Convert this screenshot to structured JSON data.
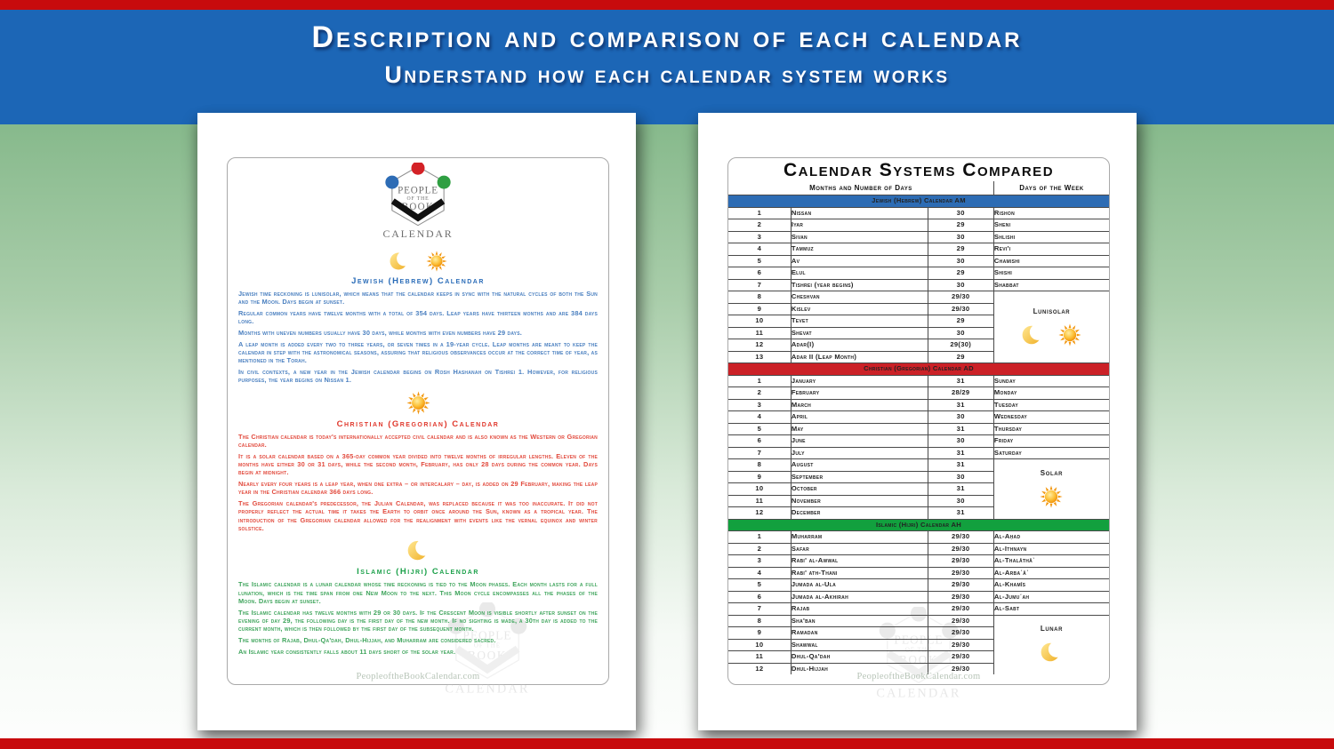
{
  "header": {
    "title": "Description and comparison of each calendar",
    "subtitle": "Understand how each calendar system works"
  },
  "colors": {
    "top_bar_red": "#c70b0d",
    "header_blue": "#1c66b6",
    "jewish_blue": "#2d6cb4",
    "christian_red": "#cb2127",
    "islamic_green": "#12a03e"
  },
  "logo": {
    "line1": "PEOPLE",
    "line2": "OF THE",
    "line3": "BOOK",
    "line4": "CALENDAR"
  },
  "watermark": {
    "url": "PeopleoftheBookCalendar.com"
  },
  "doc": {
    "sections": [
      {
        "id": "jewish",
        "heading": "Jewish (Hebrew) Calendar",
        "heading_color": "#2a6cb8",
        "text_color": "#4b80c0",
        "icons": [
          "moon",
          "sun"
        ],
        "paragraphs": [
          "Jewish time reckoning is lunisolar, which means that the calendar keeps in sync with the natural cycles of both the Sun and the Moon. Days begin at sunset.",
          "Regular common years have twelve months with a total of 354 days. Leap years have thirteen months and are 384 days long.",
          "Months with uneven numbers usually have 30 days, while months with even numbers have 29 days.",
          "A leap month is added every two to three years, or seven times in a 19-year cycle. Leap months are meant to keep the calendar in step with the astronomical seasons, assuring that religious observances occur at the correct time of year, as mentioned in the Torah.",
          "In civil contexts, a new year in the Jewish calendar begins on Rosh Hashanah on Tishrei 1. However, for religious purposes, the year begins on Nissan 1."
        ]
      },
      {
        "id": "christian",
        "heading": "Christian (Gregorian) Calendar",
        "heading_color": "#e0392d",
        "text_color": "#e24a3d",
        "icons": [
          "sun"
        ],
        "paragraphs": [
          "The Christian calendar is today's internationally accepted civil calendar and is also known as the Western or Gregorian calendar.",
          "It is a solar calendar based on a 365-day common year divided into twelve months of irregular lengths. Eleven of the months have either 30 or 31 days, while the second month, February, has only 28 days during the common year. Days begin at midnight.",
          "Nearly every four years is a leap year, when one extra – or intercalary – day, is added on 29 February, making the leap year in the Christian calendar 366 days long.",
          "The Gregorian calendar's predecessor, the Julian Calendar, was replaced because it was too inaccurate. It did not properly reflect the actual time it takes the Earth to orbit once around the Sun, known as a tropical year. The introduction of the Gregorian calendar allowed for the realignment with events like the vernal equinox and winter solstice."
        ]
      },
      {
        "id": "islamic",
        "heading": "Islamic (Hijri) Calendar",
        "heading_color": "#1da14b",
        "text_color": "#40a55d",
        "icons": [
          "moon"
        ],
        "paragraphs": [
          "The Islamic calendar is a lunar calendar whose time reckoning is tied to the Moon phases. Each month lasts for a full lunation, which is the time span from one New Moon to the next. This Moon cycle encompasses all the phases of the Moon. Days begin at sunset.",
          "The Islamic calendar has twelve months with 29 or 30 days. If the Crescent Moon is visible shortly after sunset on the evening of day 29, the following day is the first day of the new month. If no sighting is made, a 30th day is added to the current month, which is then followed by the first day of the subsequent month.",
          "The months of Rajab, Dhul-Qa'dah, Dhul-Hijjah, and Muharram are considered sacred.",
          "An Islamic year consistently falls about 11 days short of the solar year."
        ]
      }
    ]
  },
  "table": {
    "title": "Calendar Systems Compared",
    "col_headers": [
      "Months and Number of Days",
      "Days of the Week"
    ],
    "sections": [
      {
        "band": "Jewish (Hebrew) Calendar AM",
        "band_color": "#2d6cb4",
        "type_label": "Lunisolar",
        "type_icons": [
          "moon",
          "sun"
        ],
        "rows": [
          [
            "1",
            "Nissan",
            "30",
            "Rishon"
          ],
          [
            "2",
            "Iyar",
            "29",
            "Sheni"
          ],
          [
            "3",
            "Sivan",
            "30",
            "Shlishi"
          ],
          [
            "4",
            "Tammuz",
            "29",
            "Revi'i"
          ],
          [
            "5",
            "Av",
            "30",
            "Chamishi"
          ],
          [
            "6",
            "Elul",
            "29",
            "Shishi"
          ],
          [
            "7",
            "Tishrei (year begins)",
            "30",
            "Shabbat"
          ],
          [
            "8",
            "Cheshvan",
            "29/30",
            null
          ],
          [
            "9",
            "Kislev",
            "29/30",
            null
          ],
          [
            "10",
            "Tevet",
            "29",
            null
          ],
          [
            "11",
            "Shevat",
            "30",
            null
          ],
          [
            "12",
            "Adar(I)",
            "29(30)",
            null
          ],
          [
            "13",
            "Adar II (Leap Month)",
            "29",
            null
          ]
        ]
      },
      {
        "band": "Christian (Gregorian) Calendar AD",
        "band_color": "#cb2127",
        "type_label": "Solar",
        "type_icons": [
          "sun"
        ],
        "rows": [
          [
            "1",
            "January",
            "31",
            "Sunday"
          ],
          [
            "2",
            "February",
            "28/29",
            "Monday"
          ],
          [
            "3",
            "March",
            "31",
            "Tuesday"
          ],
          [
            "4",
            "April",
            "30",
            "Wednesday"
          ],
          [
            "5",
            "May",
            "31",
            "Thursday"
          ],
          [
            "6",
            "June",
            "30",
            "Friday"
          ],
          [
            "7",
            "July",
            "31",
            "Saturday"
          ],
          [
            "8",
            "August",
            "31",
            null
          ],
          [
            "9",
            "September",
            "30",
            null
          ],
          [
            "10",
            "October",
            "31",
            null
          ],
          [
            "11",
            "November",
            "30",
            null
          ],
          [
            "12",
            "December",
            "31",
            null
          ]
        ]
      },
      {
        "band": "Islamic (Hijri) Calendar AH",
        "band_color": "#12a03e",
        "type_label": "Lunar",
        "type_icons": [
          "moon"
        ],
        "rows": [
          [
            "1",
            "Muharram",
            "29/30",
            "Al-Aḥad"
          ],
          [
            "2",
            "Safar",
            "29/30",
            "Al-Ithnayn"
          ],
          [
            "3",
            "Rabi' al-Awwal",
            "29/30",
            "Al-Thalāthāʾ"
          ],
          [
            "4",
            "Rabi' ath-Thani",
            "29/30",
            "Al-Arbaʿāʾ"
          ],
          [
            "5",
            "Jumada al-Ula",
            "29/30",
            "Al-Khamīs"
          ],
          [
            "6",
            "Jumada al-Akhirah",
            "29/30",
            "Al-Jumuʿah"
          ],
          [
            "7",
            "Rajab",
            "29/30",
            "Al-Sabt"
          ],
          [
            "8",
            "Sha'ban",
            "29/30",
            null
          ],
          [
            "9",
            "Ramadan",
            "29/30",
            null
          ],
          [
            "10",
            "Shawwal",
            "29/30",
            null
          ],
          [
            "11",
            "Dhul-Qa'dah",
            "29/30",
            null
          ],
          [
            "12",
            "Dhul-Hijjah",
            "29/30",
            null
          ]
        ]
      }
    ]
  }
}
